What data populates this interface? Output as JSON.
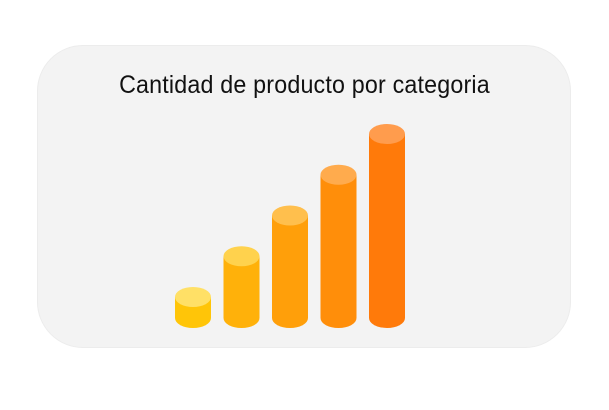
{
  "chart_data": {
    "type": "bar",
    "style": "3d-cylinder",
    "title": "Cantidad de producto por categoria",
    "xlabel": "",
    "ylabel": "",
    "categories": [
      "",
      "",
      "",
      "",
      ""
    ],
    "values": [
      1,
      2,
      3,
      4,
      5
    ],
    "ylim": [
      0,
      5
    ],
    "grid": false,
    "legend": "none",
    "colors": {
      "top_caps": [
        "#ffe066",
        "#ffd24d",
        "#ffbf4d",
        "#ffab4d",
        "#ff9c4d"
      ],
      "bodies": [
        "#ffc508",
        "#ffb10a",
        "#ff9f0a",
        "#ff8e0a",
        "#ff7a0a"
      ],
      "card_background": "#f3f3f3"
    }
  }
}
